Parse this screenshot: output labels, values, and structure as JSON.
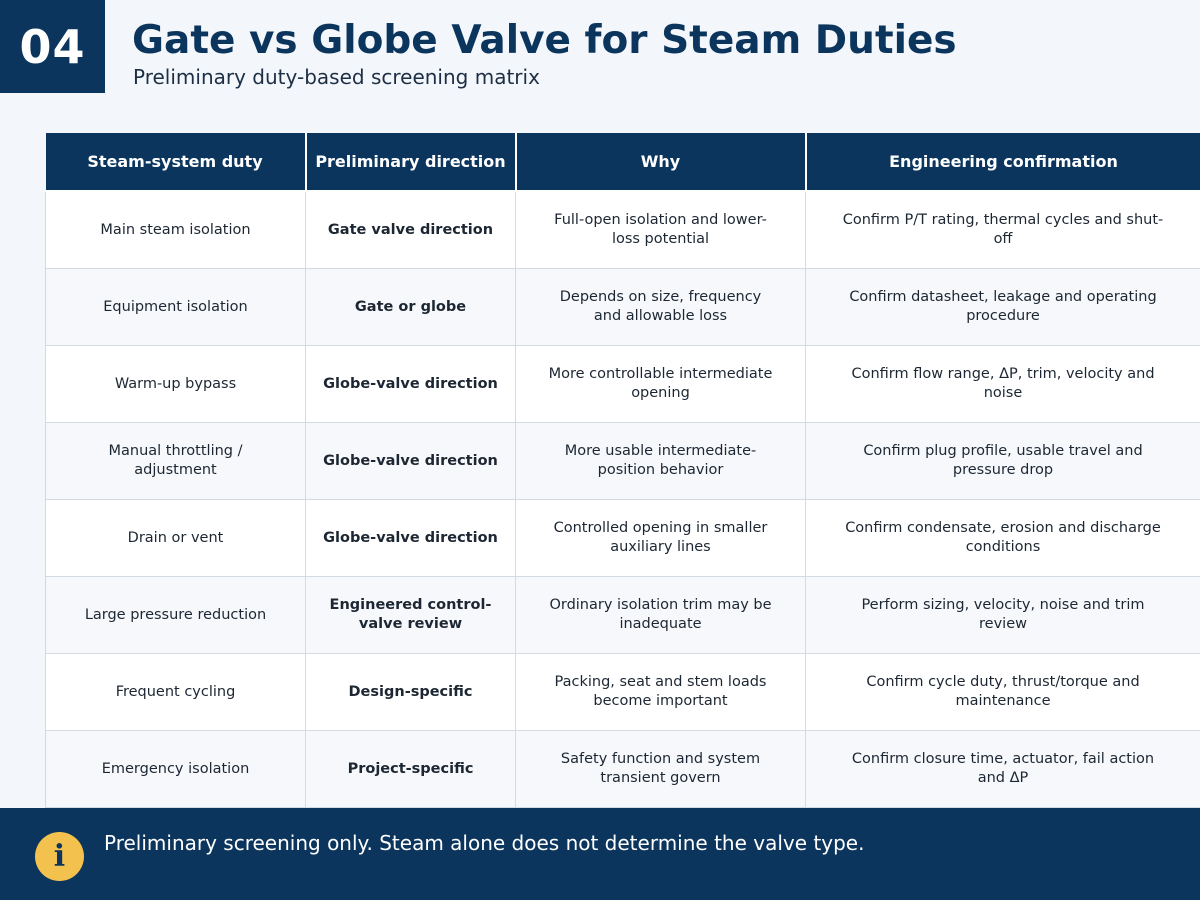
{
  "slide": {
    "number": "04",
    "title": "Gate vs Globe Valve for Steam Duties",
    "subtitle": "Preliminary duty-based screening matrix"
  },
  "table": {
    "headers": [
      "Steam-system duty",
      "Preliminary direction",
      "Why",
      "Engineering confirmation"
    ],
    "rows": [
      {
        "duty": "Main steam isolation",
        "direction": "Gate valve direction",
        "why": "Full-open isolation and lower-loss potential",
        "confirmation": "Confirm P/T rating, thermal cycles and shut-off"
      },
      {
        "duty": "Equipment isolation",
        "direction": "Gate or globe",
        "why": "Depends on size, frequency and allowable loss",
        "confirmation": "Confirm datasheet, leakage and operating procedure"
      },
      {
        "duty": "Warm-up bypass",
        "direction": "Globe-valve direction",
        "why": "More controllable intermediate opening",
        "confirmation": "Confirm flow range, ΔP, trim, velocity and noise"
      },
      {
        "duty": "Manual throttling / adjustment",
        "direction": "Globe-valve direction",
        "why": "More usable intermediate-position behavior",
        "confirmation": "Confirm plug profile, usable travel and pressure drop"
      },
      {
        "duty": "Drain or vent",
        "direction": "Globe-valve direction",
        "why": "Controlled opening in smaller auxiliary lines",
        "confirmation": "Confirm condensate, erosion and discharge conditions"
      },
      {
        "duty": "Large pressure reduction",
        "direction": "Engineered control-valve review",
        "why": "Ordinary isolation trim may be inadequate",
        "confirmation": "Perform sizing, velocity, noise and trim review"
      },
      {
        "duty": "Frequent cycling",
        "direction": "Design-specific",
        "why": "Packing, seat and stem loads become important",
        "confirmation": "Confirm cycle duty, thrust/torque and maintenance"
      },
      {
        "duty": "Emergency isolation",
        "direction": "Project-specific",
        "why": "Safety function and system transient govern",
        "confirmation": "Confirm closure time, actuator, fail action and ΔP"
      }
    ]
  },
  "footer": {
    "icon": "info-icon",
    "note": "Preliminary screening only. Steam alone does not determine the valve type."
  }
}
